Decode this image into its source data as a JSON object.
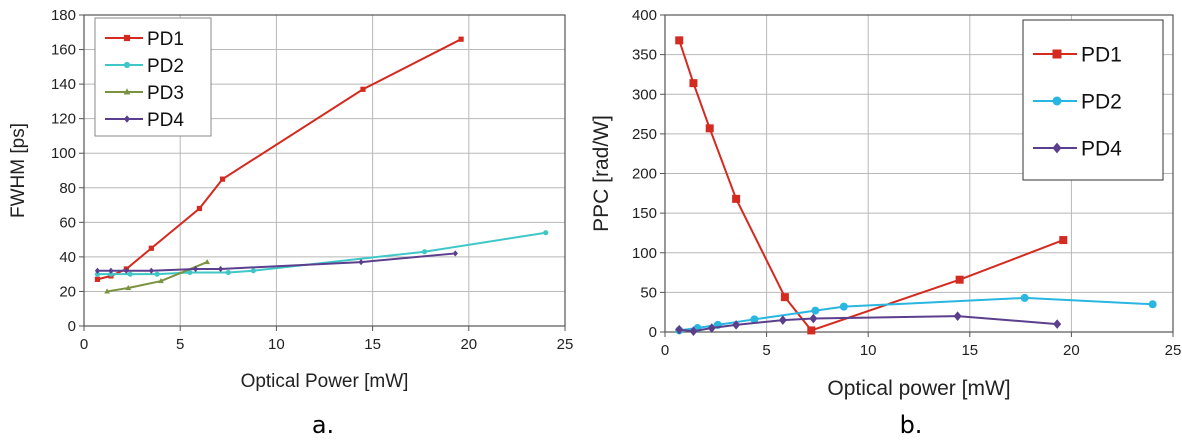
{
  "chart_data": [
    {
      "type": "line",
      "panel_label": "a.",
      "xlabel": "Optical Power [mW]",
      "ylabel": "FWHM [ps]",
      "xlim": [
        0,
        25
      ],
      "ylim": [
        0,
        180
      ],
      "xticks": [
        "0",
        "5",
        "10",
        "15",
        "20",
        "25"
      ],
      "yticks": [
        "0",
        "20",
        "40",
        "60",
        "80",
        "100",
        "120",
        "140",
        "160",
        "180"
      ],
      "grid": true,
      "legend_position": "top-left",
      "series": [
        {
          "name": "PD1",
          "color": "#d42a1f",
          "marker": "square",
          "x": [
            0.7,
            1.4,
            2.2,
            3.5,
            6.0,
            7.2,
            14.5,
            19.6
          ],
          "y": [
            27,
            29,
            33,
            45,
            68,
            85,
            137,
            166
          ]
        },
        {
          "name": "PD2",
          "color": "#3fc7c7",
          "marker": "circle",
          "x": [
            0.7,
            1.4,
            2.4,
            3.8,
            5.5,
            7.5,
            8.8,
            17.7,
            24.0
          ],
          "y": [
            30,
            30,
            30,
            30,
            31,
            31,
            32,
            43,
            54
          ]
        },
        {
          "name": "PD3",
          "color": "#7a9340",
          "marker": "triangle",
          "x": [
            1.2,
            2.3,
            4.0,
            6.4
          ],
          "y": [
            20,
            22,
            26,
            37
          ]
        },
        {
          "name": "PD4",
          "color": "#5b3f8c",
          "marker": "diamond",
          "x": [
            0.7,
            1.4,
            2.2,
            3.5,
            5.8,
            7.1,
            14.4,
            19.3
          ],
          "y": [
            32,
            32,
            32,
            32,
            33,
            33,
            37,
            42
          ]
        }
      ]
    },
    {
      "type": "line",
      "panel_label": "b.",
      "xlabel": "Optical power [mW]",
      "ylabel": "PPC [rad/W]",
      "xlim": [
        0,
        25
      ],
      "ylim": [
        0,
        400
      ],
      "xticks": [
        "0",
        "5",
        "10",
        "15",
        "20",
        "25"
      ],
      "yticks": [
        "0",
        "50",
        "100",
        "150",
        "200",
        "250",
        "300",
        "350",
        "400"
      ],
      "grid": true,
      "legend_position": "top-right",
      "series": [
        {
          "name": "PD1",
          "color": "#d42a1f",
          "marker": "square",
          "x": [
            0.7,
            1.4,
            2.2,
            3.5,
            5.9,
            7.2,
            14.5,
            19.6
          ],
          "y": [
            368,
            314,
            257,
            168,
            44,
            2,
            66,
            116
          ]
        },
        {
          "name": "PD2",
          "color": "#29b6e0",
          "marker": "circle",
          "x": [
            0.7,
            1.6,
            2.6,
            4.4,
            7.4,
            8.8,
            17.7,
            24.0
          ],
          "y": [
            2,
            5,
            9,
            16,
            27,
            32,
            43,
            35
          ]
        },
        {
          "name": "PD4",
          "color": "#5b3f8c",
          "marker": "diamond",
          "x": [
            0.7,
            1.4,
            2.3,
            3.5,
            5.8,
            7.3,
            14.4,
            19.3
          ],
          "y": [
            3,
            1,
            5,
            9,
            15,
            17,
            20,
            10
          ]
        }
      ]
    }
  ]
}
